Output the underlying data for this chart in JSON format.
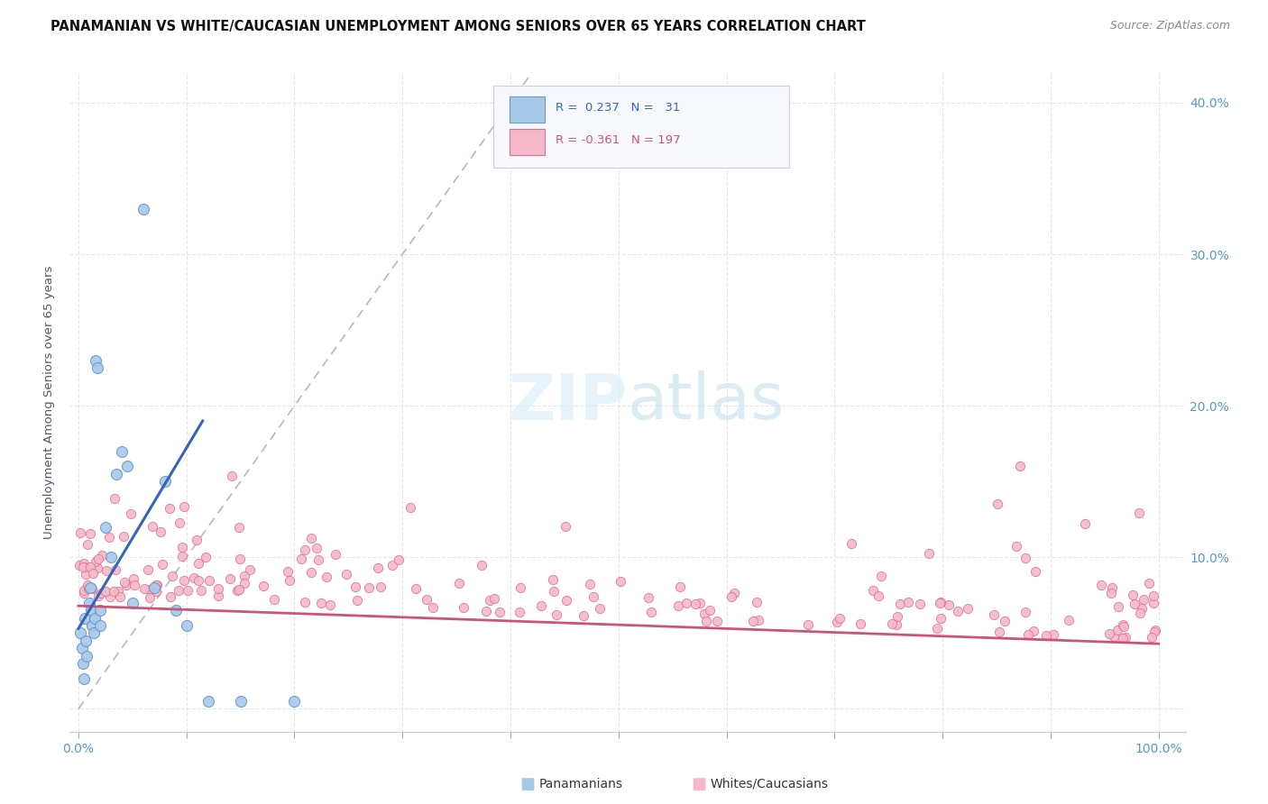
{
  "title": "PANAMANIAN VS WHITE/CAUCASIAN UNEMPLOYMENT AMONG SENIORS OVER 65 YEARS CORRELATION CHART",
  "source_text": "Source: ZipAtlas.com",
  "ylabel": "Unemployment Among Seniors over 65 years",
  "panamanian_color": "#a8c8e8",
  "panamanian_edge_color": "#6699cc",
  "white_color": "#f4b8c8",
  "white_edge_color": "#dd7090",
  "trend_blue": "#3366bb",
  "trend_pink": "#cc5577",
  "dashed_line_color": "#aabbcc",
  "background_color": "#ffffff",
  "grid_color": "#ddddee",
  "title_color": "#111111",
  "axis_label_color": "#5599cc",
  "watermark_zip_color": "#cce0f0",
  "watermark_atlas_color": "#d4e8f4",
  "legend_box_color": "#f8f8ff",
  "legend_border_color": "#ccccdd",
  "source_color": "#888899"
}
